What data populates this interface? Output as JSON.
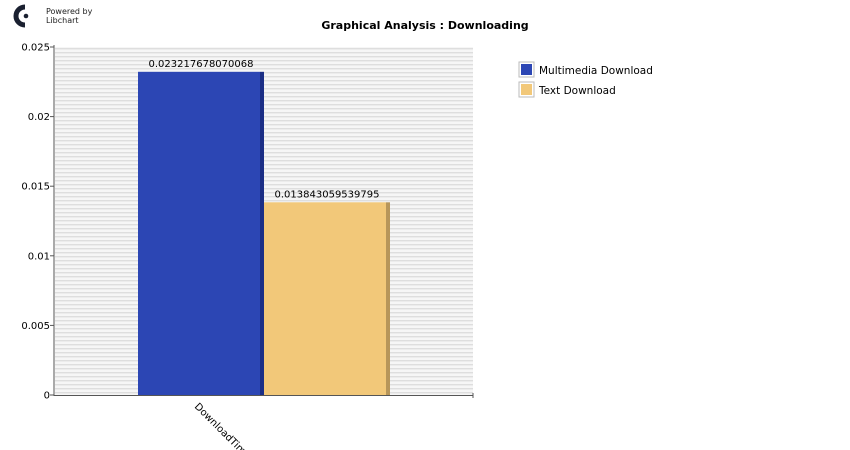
{
  "branding": {
    "line1": "Powered by",
    "line2": "Libchart",
    "logo_icon": "libchart-logo-icon"
  },
  "chart_data": {
    "type": "bar",
    "title": "Graphical Analysis : Downloading",
    "categories": [
      "DownloadTime"
    ],
    "series": [
      {
        "name": "Multimedia Download",
        "values": [
          0.023217678070068
        ],
        "label": "0.023217678070068",
        "color": "#2c46b4",
        "shade": "#1c2f86"
      },
      {
        "name": "Text Download",
        "values": [
          0.013843059539795
        ],
        "label": "0.013843059539795",
        "color": "#f2c879",
        "shade": "#b7965a"
      }
    ],
    "ylim": [
      0,
      0.025
    ],
    "yticks": [
      0,
      0.005,
      0.01,
      0.015,
      0.02,
      0.025
    ],
    "ytick_labels": [
      "0",
      "0.005",
      "0.01",
      "0.015",
      "0.02",
      "0.025"
    ],
    "xlabel": "",
    "ylabel": "",
    "grid": true,
    "legend_position": "right"
  }
}
